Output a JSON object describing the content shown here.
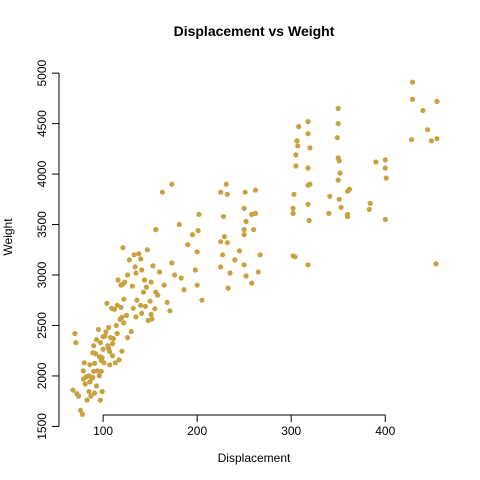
{
  "chart_data": {
    "type": "scatter",
    "title": "Displacement vs Weight",
    "xlabel": "Displacement",
    "ylabel": "Weight",
    "xlim": [
      68,
      455
    ],
    "ylim": [
      1613,
      5140
    ],
    "xticks": [
      100,
      200,
      300,
      400
    ],
    "yticks": [
      1500,
      2000,
      2500,
      3000,
      3500,
      4000,
      4500,
      5000
    ],
    "xtick_labels": [
      "100",
      "200",
      "300",
      "400"
    ],
    "ytick_labels": [
      "1500",
      "2000",
      "2500",
      "3000",
      "3500",
      "4000",
      "4500",
      "5000"
    ],
    "grid": false,
    "legend": "none",
    "point_color": "#C9A240",
    "x": [
      68,
      70,
      71,
      72,
      74,
      76,
      78,
      79,
      79,
      80,
      81,
      82,
      83,
      85,
      85,
      86,
      86,
      87,
      88,
      89,
      89,
      90,
      90,
      91,
      91,
      92,
      93,
      93,
      94,
      95,
      96,
      96,
      97,
      97,
      97,
      98,
      98,
      99,
      99,
      100,
      100,
      101,
      102,
      103,
      104,
      105,
      106,
      106,
      107,
      107,
      108,
      109,
      110,
      110,
      111,
      112,
      113,
      114,
      115,
      115,
      116,
      117,
      118,
      119,
      119,
      120,
      120,
      121,
      121,
      122,
      122,
      123,
      125,
      126,
      126,
      128,
      130,
      131,
      132,
      133,
      134,
      135,
      135,
      136,
      138,
      140,
      140,
      141,
      141,
      143,
      144,
      145,
      146,
      147,
      148,
      150,
      151,
      151,
      152,
      153,
      155,
      156,
      156,
      158,
      160,
      163,
      165,
      168,
      171,
      173,
      173,
      176,
      181,
      183,
      186,
      190,
      195,
      198,
      200,
      200,
      201,
      202,
      205,
      225,
      225,
      225,
      227,
      228,
      229,
      231,
      232,
      232,
      233,
      235,
      240,
      245,
      250,
      250,
      250,
      250,
      251,
      252,
      252,
      258,
      258,
      260,
      262,
      262,
      265,
      267,
      302,
      302,
      302,
      303,
      304,
      305,
      305,
      306,
      307,
      308,
      318,
      318,
      318,
      318,
      318,
      318,
      319,
      320,
      320,
      340,
      341,
      349,
      350,
      350,
      350,
      350,
      351,
      351,
      352,
      353,
      360,
      360,
      360,
      362,
      383,
      384,
      390,
      400,
      400,
      400,
      401,
      428,
      429,
      429,
      440,
      445,
      449,
      454,
      455,
      455
    ],
    "y": [
      1860,
      2420,
      2330,
      1825,
      1800,
      1660,
      1620,
      2050,
      1970,
      2130,
      1920,
      1990,
      1760,
      2000,
      1845,
      1940,
      2110,
      1800,
      1975,
      2230,
      1985,
      2045,
      2300,
      1830,
      2125,
      2220,
      1900,
      2360,
      2050,
      2460,
      2000,
      2190,
      1760,
      2330,
      2190,
      2155,
      2045,
      2180,
      1845,
      2265,
      2390,
      2130,
      2395,
      2435,
      2720,
      2300,
      2480,
      2270,
      2240,
      2110,
      2380,
      2670,
      2320,
      2200,
      2370,
      2660,
      2130,
      2500,
      2420,
      2700,
      2950,
      2160,
      2560,
      2680,
      2900,
      2245,
      2580,
      3270,
      2910,
      2760,
      2525,
      2930,
      2600,
      3000,
      2380,
      3150,
      2440,
      2890,
      2670,
      3200,
      3080,
      3020,
      2585,
      2750,
      3210,
      3160,
      2700,
      2620,
      3050,
      2830,
      2950,
      2690,
      2880,
      3250,
      2550,
      2740,
      2610,
      2930,
      2565,
      3090,
      2665,
      3450,
      2830,
      2800,
      3030,
      3820,
      2900,
      2730,
      2645,
      3900,
      3120,
      3000,
      3500,
      2970,
      2855,
      3300,
      3400,
      3050,
      2900,
      3230,
      3440,
      3600,
      2750,
      3330,
      3080,
      3820,
      3200,
      3580,
      3380,
      3900,
      3320,
      3800,
      2870,
      3020,
      3150,
      3240,
      3100,
      3400,
      3450,
      3660,
      3820,
      2990,
      3530,
      3600,
      2920,
      3450,
      3610,
      3840,
      3030,
      3200,
      3190,
      3610,
      3660,
      3800,
      3180,
      4080,
      4190,
      4330,
      4280,
      4470,
      4520,
      3890,
      3100,
      3700,
      4400,
      4060,
      3540,
      4260,
      3900,
      3610,
      3780,
      4360,
      4160,
      4500,
      4650,
      3940,
      4130,
      3750,
      4010,
      3670,
      3600,
      3580,
      3830,
      3850,
      3650,
      3710,
      4120,
      4060,
      4140,
      3550,
      3960,
      4340,
      4910,
      4740,
      4630,
      4440,
      4330,
      3110,
      4350,
      4720
    ]
  }
}
